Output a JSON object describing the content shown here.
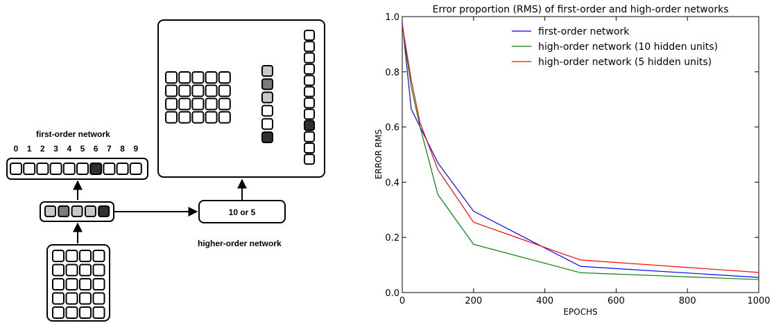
{
  "diagram": {
    "first_order_label": "first-order network",
    "digits": [
      "0",
      "1",
      "2",
      "3",
      "4",
      "5",
      "6",
      "7",
      "8",
      "9"
    ],
    "output_active_index": 6,
    "hidden_units": [
      "light",
      "mid",
      "light",
      "light",
      "dark"
    ],
    "higher_box_label": "10 or 5",
    "higher_order_label": "higher-order network",
    "input_grid": [
      [
        "d",
        "d",
        "d",
        "w"
      ],
      [
        "d",
        "w",
        "w",
        "w"
      ],
      [
        "d",
        "d",
        "d",
        "d"
      ],
      [
        "d",
        "w",
        "d",
        "d"
      ],
      [
        "d",
        "d",
        "d",
        "d"
      ]
    ],
    "panel_grid": [
      [
        "d",
        "d",
        "d",
        "d",
        "d"
      ],
      [
        "d",
        "w",
        "d",
        "w",
        "d"
      ],
      [
        "d",
        "w",
        "d",
        "w",
        "d"
      ],
      [
        "d",
        "d",
        "d",
        "w",
        "w"
      ]
    ],
    "panel_mid_column": [
      "light",
      "mid",
      "light",
      "w",
      "w",
      "dark"
    ],
    "panel_right_column": [
      "w",
      "w",
      "w",
      "w",
      "w",
      "w",
      "w",
      "w",
      "dark",
      "w",
      "w",
      "w"
    ],
    "colors": {
      "dark": "#303030",
      "mid": "#7a7a7a",
      "light": "#c8c8c8",
      "w": "#ffffff"
    }
  },
  "chart_data": {
    "type": "line",
    "title": "Error proportion (RMS) of first-order and high-order networks",
    "xlabel": "EPOCHS",
    "ylabel": "ERROR RMS",
    "xlim": [
      0,
      1000
    ],
    "ylim": [
      0.0,
      1.0
    ],
    "xticks": [
      0,
      200,
      400,
      600,
      800,
      1000
    ],
    "yticks": [
      0.0,
      0.2,
      0.4,
      0.6,
      0.8,
      1.0
    ],
    "ytick_labels": [
      "0.0",
      "0.2",
      "0.4",
      "0.6",
      "0.8",
      "1.0"
    ],
    "legend_position": "top-right",
    "grid": false,
    "series": [
      {
        "name": "first-order network",
        "color": "#0000ff",
        "x": [
          0,
          25,
          50,
          100,
          200,
          500,
          1000
        ],
        "y": [
          0.98,
          0.665,
          0.6,
          0.47,
          0.295,
          0.095,
          0.055
        ]
      },
      {
        "name": "high-order network (10 hidden units)",
        "color": "#008000",
        "x": [
          0,
          25,
          50,
          100,
          200,
          500,
          1000
        ],
        "y": [
          0.97,
          0.745,
          0.6,
          0.355,
          0.175,
          0.072,
          0.047
        ]
      },
      {
        "name": "high-order network (5 hidden units)",
        "color": "#ff0000",
        "x": [
          0,
          25,
          50,
          100,
          200,
          500,
          1000
        ],
        "y": [
          0.97,
          0.77,
          0.615,
          0.445,
          0.255,
          0.118,
          0.073
        ]
      }
    ]
  }
}
